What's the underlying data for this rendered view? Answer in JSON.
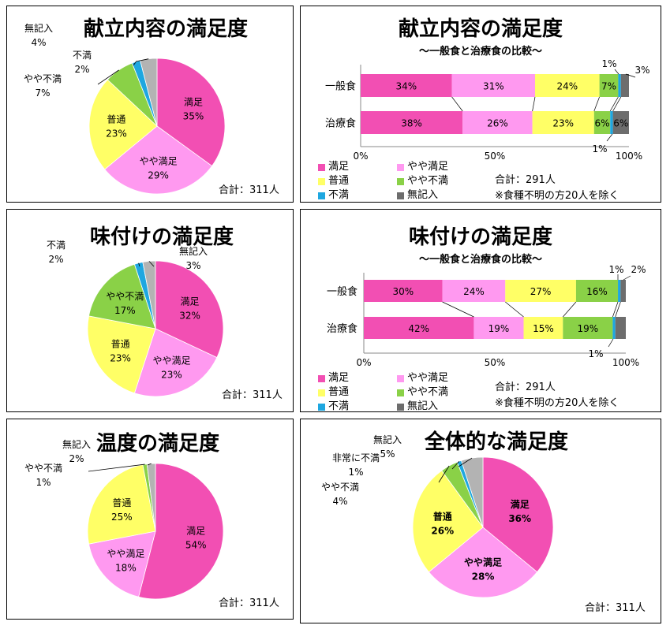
{
  "colors": {
    "満足": "#f24fb3",
    "やや満足": "#ff99f0",
    "普通": "#ffff66",
    "やや不満": "#8ad147",
    "不満": "#1ea7e0",
    "無記入": "#b3b3b3",
    "無記入_bar": "#6d6d6d",
    "非常に不満": "#1ea7e0"
  },
  "panels": {
    "p1": {
      "title": "献立内容の満足度",
      "total": "合計：311人"
    },
    "p2": {
      "title": "献立内容の満足度",
      "subtitle": "～一般食と治療食の比較～",
      "total": "合計：291人",
      "note": "※食種不明の方20人を除く"
    },
    "p3": {
      "title": "味付けの満足度",
      "total": "合計：311人"
    },
    "p4": {
      "title": "味付けの満足度",
      "subtitle": "～一般食と治療食の比較～",
      "total": "合計：291人",
      "note": "※食種不明の方20人を除く"
    },
    "p5": {
      "title": "温度の満足度",
      "total": "合計：311人"
    },
    "p6": {
      "title": "全体的な満足度",
      "total": "合計：311人"
    }
  },
  "legend": [
    "満足",
    "やや満足",
    "普通",
    "やや不満",
    "不満",
    "無記入"
  ],
  "chart_data": [
    {
      "type": "pie",
      "title": "献立内容の満足度",
      "categories": [
        "満足",
        "やや満足",
        "普通",
        "やや不満",
        "不満",
        "無記入"
      ],
      "values": [
        35,
        29,
        23,
        7,
        2,
        4
      ]
    },
    {
      "type": "bar",
      "stacked": "percent",
      "orientation": "horizontal",
      "title": "献立内容の満足度",
      "subtitle": "～一般食と治療食の比較～",
      "categories": [
        "一般食",
        "治療食"
      ],
      "series": [
        {
          "name": "満足",
          "values": [
            34,
            38
          ]
        },
        {
          "name": "やや満足",
          "values": [
            31,
            26
          ]
        },
        {
          "name": "普通",
          "values": [
            24,
            23
          ]
        },
        {
          "name": "やや不満",
          "values": [
            7,
            6
          ]
        },
        {
          "name": "不満",
          "values": [
            1,
            1
          ]
        },
        {
          "name": "無記入",
          "values": [
            3,
            6
          ]
        }
      ],
      "x_ticks": [
        "0%",
        "50%",
        "100%"
      ],
      "xlim": [
        0,
        100
      ]
    },
    {
      "type": "pie",
      "title": "味付けの満足度",
      "categories": [
        "満足",
        "やや満足",
        "普通",
        "やや不満",
        "不満",
        "無記入"
      ],
      "values": [
        32,
        23,
        23,
        17,
        2,
        3
      ]
    },
    {
      "type": "bar",
      "stacked": "percent",
      "orientation": "horizontal",
      "title": "味付けの満足度",
      "subtitle": "～一般食と治療食の比較～",
      "categories": [
        "一般食",
        "治療食"
      ],
      "series": [
        {
          "name": "満足",
          "values": [
            30,
            42
          ]
        },
        {
          "name": "やや満足",
          "values": [
            24,
            19
          ]
        },
        {
          "name": "普通",
          "values": [
            27,
            15
          ]
        },
        {
          "name": "やや不満",
          "values": [
            16,
            19
          ]
        },
        {
          "name": "不満",
          "values": [
            1,
            1
          ]
        },
        {
          "name": "無記入",
          "values": [
            2,
            4
          ]
        }
      ],
      "x_ticks": [
        "0%",
        "50%",
        "100%"
      ],
      "xlim": [
        0,
        100
      ]
    },
    {
      "type": "pie",
      "title": "温度の満足度",
      "categories": [
        "満足",
        "やや満足",
        "普通",
        "やや不満",
        "無記入"
      ],
      "values": [
        54,
        18,
        25,
        1,
        2
      ]
    },
    {
      "type": "pie",
      "title": "全体的な満足度",
      "categories": [
        "満足",
        "やや満足",
        "普通",
        "やや不満",
        "非常に不満",
        "無記入"
      ],
      "values": [
        36,
        28,
        26,
        4,
        1,
        5
      ]
    }
  ]
}
